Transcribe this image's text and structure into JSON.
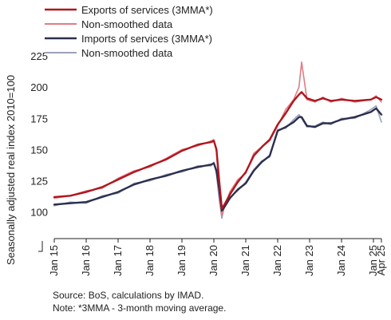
{
  "chart_data": {
    "type": "line",
    "title": "",
    "xlabel": "",
    "ylabel": "Seasonally adjusted real index 2010=100",
    "ylim": [
      80,
      225
    ],
    "yticks": [
      100,
      125,
      150,
      175,
      200,
      225
    ],
    "x_tick_labels": [
      "Jan 15",
      "Jan 16",
      "Jan 17",
      "Jan 18",
      "Jan 19",
      "Jan 20",
      "Jan 21",
      "Jan 22",
      "Jan 23",
      "Jan 24",
      "Jan 25",
      "Apr 25"
    ],
    "x_tick_dates": [
      "2015-01",
      "2016-01",
      "2017-01",
      "2018-01",
      "2019-01",
      "2020-01",
      "2021-01",
      "2022-01",
      "2023-01",
      "2024-01",
      "2025-01",
      "2025-04"
    ],
    "legend_position": "top-left",
    "grid": false,
    "anchor_dates": [
      "2015-01",
      "2015-07",
      "2016-01",
      "2016-07",
      "2017-01",
      "2017-07",
      "2018-01",
      "2018-07",
      "2019-01",
      "2019-07",
      "2019-12",
      "2020-01",
      "2020-02",
      "2020-03",
      "2020-04",
      "2020-05",
      "2020-07",
      "2020-10",
      "2021-01",
      "2021-04",
      "2021-07",
      "2021-10",
      "2022-01",
      "2022-04",
      "2022-07",
      "2022-09",
      "2022-10",
      "2022-12",
      "2023-03",
      "2023-06",
      "2023-09",
      "2024-01",
      "2024-06",
      "2024-12",
      "2025-02",
      "2025-04"
    ],
    "series": [
      {
        "name": "Exports of services (3MMA*)",
        "color": "#b0161e",
        "values": [
          112,
          113,
          116,
          120,
          126,
          132,
          137,
          142,
          149,
          154,
          156,
          157,
          150,
          125,
          103,
          106,
          114,
          124,
          132,
          145,
          152,
          158,
          170,
          179,
          189,
          194,
          196,
          191,
          189,
          191,
          189,
          190,
          189,
          190,
          192,
          190
        ]
      },
      {
        "name": "Non-smoothed data",
        "color": "#e07c83",
        "values": [
          111,
          113,
          117,
          119,
          127,
          133,
          136,
          143,
          150,
          153,
          157,
          158,
          148,
          115,
          97,
          104,
          116,
          126,
          131,
          147,
          152,
          157,
          169,
          182,
          190,
          200,
          220,
          190,
          188,
          192,
          188,
          191,
          188,
          190,
          193,
          188
        ]
      },
      {
        "name": "Imports of services (3MMA*)",
        "color": "#2b2f4e",
        "values": [
          106,
          107,
          108,
          112,
          116,
          122,
          126,
          129,
          133,
          136,
          138,
          139,
          133,
          118,
          101,
          104,
          111,
          118,
          123,
          133,
          140,
          145,
          165,
          168,
          172,
          176,
          176,
          169,
          168,
          171,
          171,
          174,
          176,
          180,
          183,
          178
        ]
      },
      {
        "name": "Non-smoothed data",
        "color": "#9aa1b8",
        "values": [
          105,
          108,
          107,
          113,
          115,
          123,
          125,
          130,
          132,
          137,
          137,
          140,
          130,
          110,
          95,
          105,
          112,
          117,
          124,
          134,
          141,
          144,
          166,
          167,
          174,
          178,
          175,
          168,
          169,
          172,
          170,
          175,
          175,
          182,
          185,
          172
        ]
      }
    ]
  },
  "legend": [
    {
      "label": "Exports of services (3MMA*)",
      "color": "#b0161e"
    },
    {
      "label": "Non-smoothed data",
      "color": "#e07c83"
    },
    {
      "label": "Imports of services (3MMA*)",
      "color": "#2b2f4e"
    },
    {
      "label": "Non-smoothed data",
      "color": "#9aa1b8"
    }
  ],
  "notes": {
    "source": "Source: BoS, calculations by IMAD.",
    "note": "Note: *3MMA - 3-month moving average."
  }
}
